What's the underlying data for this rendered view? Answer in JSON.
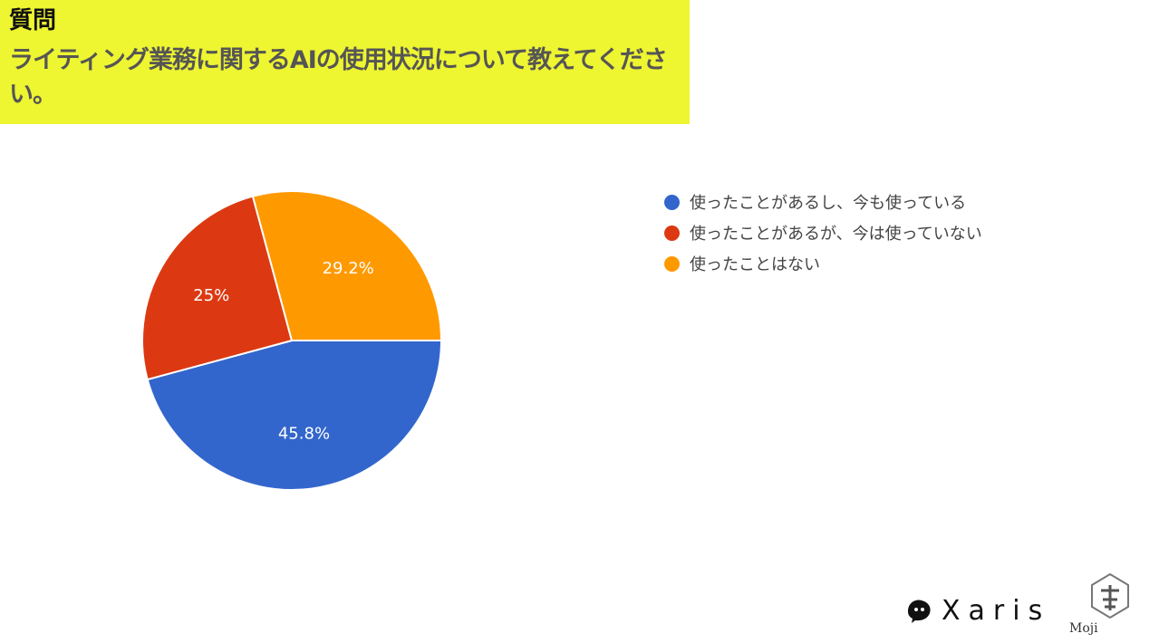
{
  "header": {
    "label": "質問",
    "question": "ライティング業務に関するAIの使用状況について教えてください。"
  },
  "chart_data": {
    "type": "pie",
    "title": "",
    "slices": [
      {
        "name": "使ったことがあるし、今も使っている",
        "value": 45.8,
        "label": "45.8%",
        "color": "#3366cc"
      },
      {
        "name": "使ったことがあるが、今は使っていない",
        "value": 25,
        "label": "25%",
        "color": "#dc3912"
      },
      {
        "name": "使ったことはない",
        "value": 29.2,
        "label": "29.2%",
        "color": "#ff9900"
      }
    ],
    "legend_position": "right"
  },
  "legend": {
    "items": [
      {
        "label": "使ったことがあるし、今も使っている",
        "color": "#3366cc"
      },
      {
        "label": "使ったことがあるが、今は使っていない",
        "color": "#dc3912"
      },
      {
        "label": "使ったことはない",
        "color": "#ff9900"
      }
    ]
  },
  "brands": {
    "xaris": "Xaris",
    "moji": "Moji",
    "xaris_logo_icon": "xaris-logo-icon",
    "moji_logo_icon": "moji-guild-logo-icon"
  }
}
